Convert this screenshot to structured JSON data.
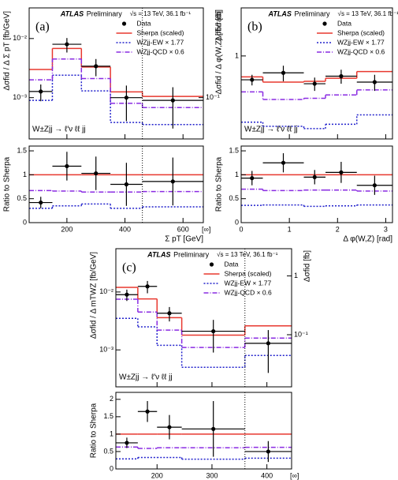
{
  "chart_data": [
    {
      "type": "histogram",
      "panel_label": "(a)",
      "atlas": "ATLAS",
      "status": "Preliminary",
      "energy": "√s = 13 TeV, 36.1 fb⁻¹",
      "process": "W±Zjj → ℓ′ν ℓℓ jj",
      "ylabel": "Δσfid / Δ Σ pT  [fb/GeV]",
      "y2label": "Δσfid [fb]",
      "xlabel": "Σ pT [GeV]",
      "overflow_label": "[∞]",
      "ratio_ylabel": "Ratio to Sherpa",
      "bins": [
        70,
        150,
        250,
        350,
        460,
        670
      ],
      "xlim": [
        70,
        670
      ],
      "xticks": [
        200,
        400,
        600
      ],
      "log_y": true,
      "ylim": [
        0.0002,
        0.033
      ],
      "yticks": [
        {
          "value": 0.01,
          "label": "10⁻²"
        },
        {
          "value": 0.001,
          "label": "10⁻³"
        }
      ],
      "y2lim": [
        0.02,
        3.3
      ],
      "y2ticks": [
        {
          "value": 0.1,
          "label": "10⁻¹"
        }
      ],
      "ratio_ylim": [
        0,
        1.6
      ],
      "ratio_yticks": [
        0,
        0.5,
        1,
        1.5
      ],
      "series": [
        {
          "name": "Data",
          "color": "#000000",
          "style": "points",
          "values": [
            0.00127,
            0.008,
            0.0034,
            0.001,
            0.0009
          ],
          "errors": [
            0.0004,
            0.0022,
            0.0011,
            0.0006,
            0.0006
          ],
          "ratio": [
            0.42,
            1.18,
            1.03,
            0.8,
            0.86
          ],
          "ratio_errors": [
            0.12,
            0.3,
            0.35,
            0.45,
            0.5
          ]
        },
        {
          "name": "Sherpa (scaled)",
          "color": "#e8382f",
          "style": "solid",
          "values": [
            0.003,
            0.0068,
            0.0033,
            0.00125,
            0.00105
          ],
          "ratio": [
            1,
            1,
            1,
            1,
            1
          ]
        },
        {
          "name": "WZjj-EW × 1.77",
          "color": "#2222cc",
          "style": "dotted",
          "values": [
            0.0009,
            0.0024,
            0.0013,
            0.00038,
            0.00035
          ],
          "ratio": [
            0.3,
            0.35,
            0.39,
            0.3,
            0.33
          ]
        },
        {
          "name": "WZjj-QCD × 0.6",
          "color": "#8a2be2",
          "style": "dashdot",
          "values": [
            0.002,
            0.0045,
            0.0021,
            0.0008,
            0.00068
          ],
          "ratio": [
            0.67,
            0.66,
            0.64,
            0.64,
            0.65
          ]
        }
      ]
    },
    {
      "type": "histogram",
      "panel_label": "(b)",
      "atlas": "ATLAS",
      "status": "Preliminary",
      "energy": "√s = 13 TeV, 36.1 fb⁻¹",
      "process": "W±Zjj → ℓ′ν ℓℓ jj",
      "ylabel": "Δσfid / Δ φ(W,Z)  [fb/rad]",
      "xlabel": "Δ φ(W,Z) [rad]",
      "ratio_ylabel": "Ratio to Sherpa",
      "bins": [
        0,
        0.45,
        1.3,
        1.75,
        2.4,
        3.14
      ],
      "xlim": [
        0,
        3.14
      ],
      "xticks": [
        0,
        1,
        2,
        3
      ],
      "log_y": true,
      "ylim": [
        0.15,
        3
      ],
      "yticks": [
        1
      ],
      "ratio_ylim": [
        0,
        1.6
      ],
      "ratio_yticks": [
        0,
        0.5,
        1,
        1.5
      ],
      "series": [
        {
          "name": "Data",
          "color": "#000000",
          "style": "points",
          "values": [
            0.58,
            0.68,
            0.53,
            0.63,
            0.55
          ],
          "errors": [
            0.07,
            0.12,
            0.08,
            0.1,
            0.1
          ],
          "ratio": [
            0.93,
            1.25,
            0.95,
            1.05,
            0.78
          ],
          "ratio_errors": [
            0.15,
            0.2,
            0.15,
            0.22,
            0.2
          ]
        },
        {
          "name": "Sherpa (scaled)",
          "color": "#e8382f",
          "style": "solid",
          "values": [
            0.62,
            0.55,
            0.56,
            0.6,
            0.7
          ],
          "ratio": [
            1,
            1,
            1,
            1,
            1
          ]
        },
        {
          "name": "WZjj-EW × 1.77",
          "color": "#2222cc",
          "style": "dotted",
          "values": [
            0.22,
            0.2,
            0.19,
            0.21,
            0.26
          ],
          "ratio": [
            0.36,
            0.37,
            0.34,
            0.35,
            0.37
          ]
        },
        {
          "name": "WZjj-QCD × 0.6",
          "color": "#8a2be2",
          "style": "dashdot",
          "values": [
            0.44,
            0.37,
            0.38,
            0.41,
            0.46
          ],
          "ratio": [
            0.7,
            0.67,
            0.68,
            0.68,
            0.66
          ]
        }
      ]
    },
    {
      "type": "histogram",
      "panel_label": "(c)",
      "atlas": "ATLAS",
      "status": "Preliminary",
      "energy": "√s = 13 TeV, 36.1 fb⁻¹",
      "process": "W±Zjj → ℓ′ν ℓℓ jj",
      "ylabel": "Δσfid / Δ mTWZ  [fb/GeV]",
      "y2label": "Δσfid [fb]",
      "xlabel": "mTWZ [GeV]",
      "overflow_label": "[∞]",
      "ratio_ylabel": "Ratio to Sherpa",
      "bins": [
        125,
        165,
        200,
        245,
        360,
        445
      ],
      "xlim": [
        125,
        445
      ],
      "xticks": [
        200,
        300,
        400
      ],
      "log_y": true,
      "ylim": [
        0.00023,
        0.056
      ],
      "yticks": [
        {
          "value": 0.01,
          "label": "10⁻²"
        },
        {
          "value": 0.001,
          "label": "10⁻³"
        }
      ],
      "y2lim": [
        0.013,
        2.9
      ],
      "y2ticks": [
        1,
        {
          "value": 0.1,
          "label": "10⁻¹"
        }
      ],
      "ratio_ylim": [
        0,
        2.2
      ],
      "ratio_yticks": [
        0,
        0.5,
        1,
        1.5,
        2
      ],
      "series": [
        {
          "name": "Data",
          "color": "#000000",
          "style": "points",
          "values": [
            0.009,
            0.0125,
            0.0043,
            0.0021,
            0.0013
          ],
          "errors": [
            0.002,
            0.003,
            0.0012,
            0.0012,
            0.0009
          ],
          "ratio": [
            0.75,
            1.65,
            1.2,
            1.15,
            0.5
          ],
          "ratio_errors": [
            0.15,
            0.3,
            0.35,
            0.8,
            0.3
          ]
        },
        {
          "name": "Sherpa (scaled)",
          "color": "#e8382f",
          "style": "solid",
          "values": [
            0.012,
            0.0076,
            0.0036,
            0.0018,
            0.0026
          ],
          "ratio": [
            1,
            1,
            1,
            1,
            1
          ]
        },
        {
          "name": "WZjj-EW × 1.77",
          "color": "#2222cc",
          "style": "dotted",
          "values": [
            0.0035,
            0.0025,
            0.0012,
            0.0005,
            0.0008
          ],
          "ratio": [
            0.29,
            0.33,
            0.33,
            0.28,
            0.31
          ]
        },
        {
          "name": "WZjj-QCD × 0.6",
          "color": "#8a2be2",
          "style": "dashdot",
          "values": [
            0.0075,
            0.0045,
            0.0022,
            0.0011,
            0.0016
          ],
          "ratio": [
            0.63,
            0.59,
            0.61,
            0.61,
            0.62
          ]
        }
      ]
    }
  ]
}
